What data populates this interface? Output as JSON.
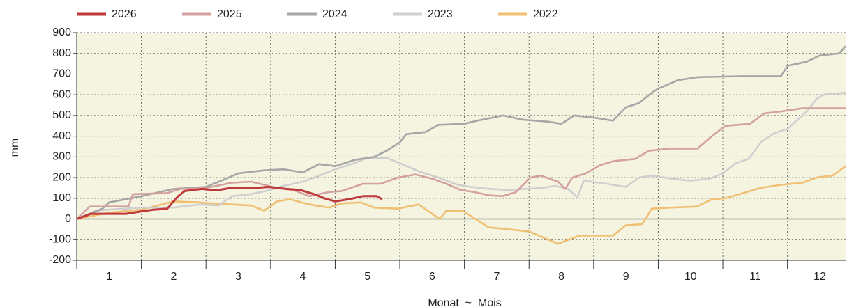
{
  "chart_data": {
    "type": "line",
    "ylabel": "mm",
    "xlabel": "Monat  ~  Mois",
    "categories": [
      "1",
      "2",
      "3",
      "4",
      "5",
      "6",
      "7",
      "8",
      "9",
      "10",
      "11",
      "12"
    ],
    "xlim": [
      0,
      11.9
    ],
    "ylim": [
      -200,
      900
    ],
    "yticks": [
      -200,
      -100,
      0,
      100,
      200,
      300,
      400,
      500,
      600,
      700,
      800,
      900
    ],
    "grid": true,
    "legend": "top",
    "series": [
      {
        "name": "2026",
        "color": "#c0393b",
        "x": [
          0,
          0.22,
          0.76,
          0.97,
          1.19,
          1.4,
          1.57,
          1.67,
          1.94,
          2.16,
          2.38,
          2.7,
          2.97,
          3.24,
          3.46,
          3.67,
          3.83,
          4.0,
          4.21,
          4.43,
          4.64,
          4.73
        ],
        "values": [
          0,
          25,
          25,
          35,
          45,
          50,
          110,
          135,
          145,
          138,
          150,
          148,
          155,
          145,
          140,
          120,
          100,
          85,
          95,
          110,
          110,
          95
        ]
      },
      {
        "name": "2025",
        "color": "#d4a0a0",
        "x": [
          0,
          0.2,
          0.8,
          0.87,
          1.4,
          1.6,
          2.0,
          2.4,
          2.7,
          3.1,
          3.35,
          3.6,
          3.9,
          4.1,
          4.43,
          4.7,
          4.97,
          5.24,
          5.5,
          5.72,
          5.94,
          6.15,
          6.37,
          6.59,
          6.8,
          7.02,
          7.18,
          7.45,
          7.56,
          7.67,
          7.88,
          8.1,
          8.32,
          8.64,
          8.86,
          9.18,
          9.61,
          9.83,
          10.04,
          10.42,
          10.64,
          10.91,
          11.23,
          11.9
        ],
        "values": [
          0,
          60,
          60,
          120,
          125,
          145,
          150,
          175,
          180,
          150,
          140,
          110,
          130,
          135,
          170,
          170,
          200,
          215,
          195,
          170,
          140,
          130,
          115,
          110,
          130,
          200,
          210,
          180,
          145,
          200,
          220,
          260,
          280,
          290,
          330,
          340,
          340,
          400,
          450,
          460,
          510,
          520,
          535,
          535
        ]
      },
      {
        "name": "2024",
        "color": "#a6a6a6",
        "x": [
          0,
          0.4,
          0.5,
          1.0,
          1.5,
          2.0,
          2.2,
          2.5,
          2.9,
          3.2,
          3.5,
          3.75,
          4.0,
          4.3,
          4.6,
          4.8,
          5.0,
          5.1,
          5.4,
          5.6,
          6.0,
          6.2,
          6.6,
          6.9,
          7.3,
          7.5,
          7.7,
          8.0,
          8.3,
          8.5,
          8.7,
          8.9,
          9.0,
          9.3,
          9.6,
          10.3,
          10.9,
          11.0,
          11.3,
          11.5,
          11.8,
          11.9
        ],
        "values": [
          0,
          50,
          80,
          110,
          145,
          155,
          180,
          220,
          235,
          240,
          225,
          265,
          255,
          285,
          300,
          330,
          370,
          410,
          420,
          455,
          460,
          475,
          500,
          480,
          470,
          460,
          500,
          490,
          475,
          540,
          560,
          610,
          630,
          670,
          685,
          690,
          690,
          740,
          760,
          790,
          800,
          835
        ]
      },
      {
        "name": "2023",
        "color": "#cfcfcf",
        "x": [
          0,
          0.3,
          0.5,
          1.0,
          1.5,
          1.9,
          2.2,
          2.4,
          2.7,
          3.0,
          3.2,
          3.5,
          3.8,
          4.0,
          4.3,
          4.5,
          4.8,
          5.0,
          5.3,
          5.6,
          5.9,
          6.1,
          6.4,
          6.7,
          6.9,
          7.2,
          7.4,
          7.6,
          7.75,
          7.85,
          8.2,
          8.5,
          8.7,
          8.9,
          9.2,
          9.5,
          9.8,
          10.0,
          10.2,
          10.4,
          10.6,
          10.8,
          11.0,
          11.3,
          11.45,
          11.55,
          11.7,
          11.9
        ],
        "values": [
          0,
          40,
          45,
          55,
          55,
          70,
          65,
          110,
          120,
          140,
          160,
          180,
          215,
          240,
          270,
          295,
          295,
          270,
          230,
          200,
          165,
          155,
          145,
          140,
          145,
          150,
          160,
          145,
          105,
          185,
          170,
          155,
          200,
          210,
          195,
          185,
          195,
          220,
          270,
          290,
          375,
          415,
          435,
          520,
          580,
          600,
          605,
          610
        ]
      },
      {
        "name": "2022",
        "color": "#f0bf73",
        "x": [
          0,
          0.5,
          1.0,
          1.5,
          1.9,
          2.1,
          2.4,
          2.7,
          2.9,
          3.1,
          3.3,
          3.6,
          3.9,
          4.1,
          4.4,
          4.6,
          4.97,
          5.29,
          5.62,
          5.72,
          5.97,
          6.37,
          7.0,
          7.45,
          7.78,
          8.3,
          8.5,
          8.75,
          8.9,
          9.2,
          9.6,
          9.83,
          10.04,
          10.26,
          10.58,
          10.9,
          11.23,
          11.45,
          11.7,
          11.9
        ],
        "values": [
          0,
          30,
          45,
          85,
          80,
          75,
          70,
          65,
          40,
          85,
          95,
          70,
          55,
          75,
          80,
          55,
          50,
          70,
          0,
          40,
          40,
          -40,
          -60,
          -120,
          -80,
          -80,
          -30,
          -25,
          50,
          55,
          60,
          95,
          100,
          120,
          150,
          165,
          175,
          200,
          210,
          255
        ]
      }
    ]
  }
}
